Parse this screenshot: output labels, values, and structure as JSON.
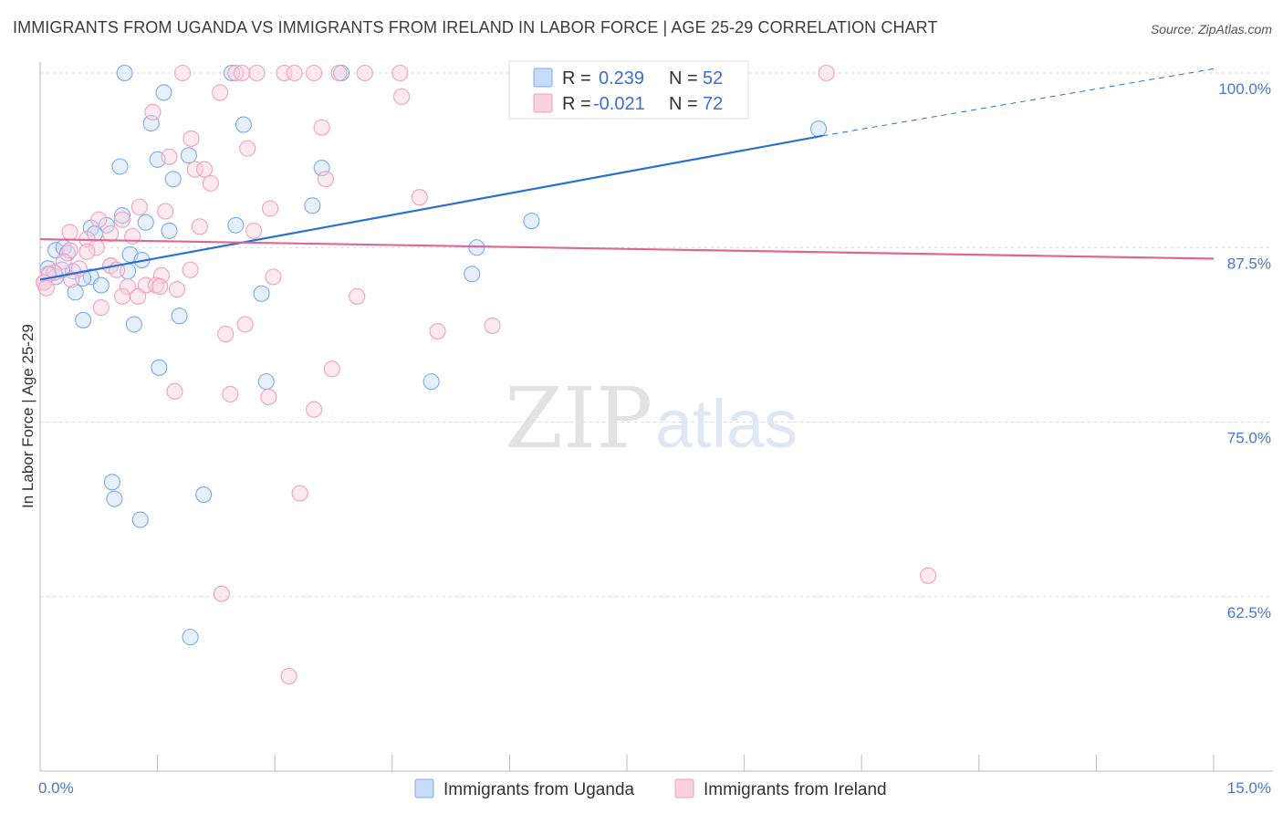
{
  "header": {
    "title": "IMMIGRANTS FROM UGANDA VS IMMIGRANTS FROM IRELAND IN LABOR FORCE | AGE 25-29 CORRELATION CHART",
    "source": "Source: ZipAtlas.com"
  },
  "watermark": {
    "zip": "ZIP",
    "atlas": "atlas"
  },
  "chart_data": {
    "type": "scatter",
    "ylabel": "In Labor Force | Age 25-29",
    "xlim": [
      0.0,
      15.0
    ],
    "ylim": [
      50.0,
      100.0
    ],
    "x_tick_labels": [
      "0.0%",
      "15.0%"
    ],
    "y_ticks": [
      62.5,
      75.0,
      87.5,
      100.0
    ],
    "y_tick_labels": [
      "62.5%",
      "75.0%",
      "87.5%",
      "100.0%"
    ],
    "grid": "horizontal dashed",
    "legend_stats": [
      {
        "r_label": "R =",
        "r": "0.239",
        "n_label": "N =",
        "n": "52",
        "color": "#7aaaf0"
      },
      {
        "r_label": "R =",
        "r": "-0.021",
        "n_label": "N =",
        "n": "72",
        "color": "#f2a0bc"
      }
    ],
    "series": [
      {
        "name": "Immigrants from Uganda",
        "color": "#7aaaf0",
        "line_color": "#2b6fd0",
        "trend": {
          "x0": 0.0,
          "y0": 85.2,
          "x1": 10.0,
          "y1": 95.5,
          "x_ext": 15.0,
          "y_ext": 100.3
        },
        "points": [
          [
            1.08,
            100.0
          ],
          [
            2.45,
            100.0
          ],
          [
            3.85,
            100.0
          ],
          [
            1.58,
            98.6
          ],
          [
            1.42,
            96.4
          ],
          [
            2.6,
            96.3
          ],
          [
            1.5,
            93.8
          ],
          [
            1.9,
            94.1
          ],
          [
            1.02,
            93.3
          ],
          [
            3.6,
            93.2
          ],
          [
            1.7,
            92.4
          ],
          [
            3.48,
            90.5
          ],
          [
            1.05,
            89.8
          ],
          [
            0.85,
            89.1
          ],
          [
            1.35,
            89.3
          ],
          [
            0.65,
            88.9
          ],
          [
            2.5,
            89.1
          ],
          [
            1.65,
            88.7
          ],
          [
            0.7,
            88.5
          ],
          [
            0.2,
            87.3
          ],
          [
            0.3,
            87.5
          ],
          [
            0.35,
            87.1
          ],
          [
            1.15,
            87.0
          ],
          [
            1.3,
            86.6
          ],
          [
            0.1,
            86.0
          ],
          [
            0.42,
            85.8
          ],
          [
            0.12,
            85.6
          ],
          [
            0.2,
            85.4
          ],
          [
            0.65,
            85.4
          ],
          [
            0.55,
            85.3
          ],
          [
            1.12,
            85.8
          ],
          [
            0.9,
            86.2
          ],
          [
            0.28,
            85.9
          ],
          [
            0.45,
            84.3
          ],
          [
            0.78,
            84.8
          ],
          [
            2.83,
            84.2
          ],
          [
            0.55,
            82.3
          ],
          [
            1.2,
            82.0
          ],
          [
            1.78,
            82.6
          ],
          [
            1.52,
            78.9
          ],
          [
            2.89,
            77.9
          ],
          [
            5.0,
            77.9
          ],
          [
            0.92,
            70.7
          ],
          [
            0.95,
            69.5
          ],
          [
            2.09,
            69.8
          ],
          [
            1.28,
            68.0
          ],
          [
            1.92,
            59.6
          ],
          [
            6.28,
            89.4
          ],
          [
            5.58,
            87.5
          ],
          [
            5.52,
            85.6
          ],
          [
            9.95,
            96.0
          ],
          [
            0.05,
            85.0
          ]
        ]
      },
      {
        "name": "Immigrants from Ireland",
        "color": "#f2a0bc",
        "line_color": "#e06890",
        "trend": {
          "x0": 0.0,
          "y0": 88.1,
          "x1": 15.0,
          "y1": 86.7
        },
        "points": [
          [
            1.82,
            100.0
          ],
          [
            2.5,
            100.0
          ],
          [
            2.58,
            100.0
          ],
          [
            2.77,
            100.0
          ],
          [
            3.12,
            100.0
          ],
          [
            3.25,
            100.0
          ],
          [
            3.5,
            100.0
          ],
          [
            3.82,
            100.0
          ],
          [
            4.15,
            100.0
          ],
          [
            4.6,
            100.0
          ],
          [
            10.05,
            100.0
          ],
          [
            2.3,
            98.6
          ],
          [
            4.62,
            98.3
          ],
          [
            1.44,
            97.2
          ],
          [
            3.6,
            96.1
          ],
          [
            1.93,
            95.3
          ],
          [
            2.65,
            94.6
          ],
          [
            1.65,
            94.0
          ],
          [
            1.98,
            93.1
          ],
          [
            2.1,
            93.1
          ],
          [
            2.18,
            92.1
          ],
          [
            3.65,
            92.4
          ],
          [
            4.85,
            91.1
          ],
          [
            1.27,
            90.4
          ],
          [
            1.6,
            90.1
          ],
          [
            2.94,
            90.3
          ],
          [
            1.05,
            89.5
          ],
          [
            0.75,
            89.5
          ],
          [
            2.04,
            89.0
          ],
          [
            2.73,
            88.7
          ],
          [
            0.38,
            88.6
          ],
          [
            0.6,
            88.1
          ],
          [
            0.9,
            88.5
          ],
          [
            1.18,
            88.3
          ],
          [
            0.72,
            87.5
          ],
          [
            0.38,
            87.3
          ],
          [
            0.6,
            87.2
          ],
          [
            0.3,
            86.5
          ],
          [
            0.5,
            86.0
          ],
          [
            0.9,
            86.2
          ],
          [
            0.98,
            85.9
          ],
          [
            0.18,
            85.7
          ],
          [
            0.1,
            85.6
          ],
          [
            0.4,
            85.2
          ],
          [
            1.55,
            85.5
          ],
          [
            1.92,
            85.9
          ],
          [
            2.98,
            85.4
          ],
          [
            1.12,
            84.7
          ],
          [
            1.35,
            84.8
          ],
          [
            1.48,
            84.8
          ],
          [
            1.53,
            84.7
          ],
          [
            1.75,
            84.5
          ],
          [
            1.05,
            84.0
          ],
          [
            1.25,
            84.0
          ],
          [
            4.05,
            84.0
          ],
          [
            0.78,
            83.2
          ],
          [
            2.62,
            82.0
          ],
          [
            2.37,
            81.3
          ],
          [
            5.08,
            81.5
          ],
          [
            5.78,
            81.9
          ],
          [
            3.73,
            78.8
          ],
          [
            1.72,
            77.2
          ],
          [
            2.43,
            77.0
          ],
          [
            2.92,
            76.8
          ],
          [
            3.5,
            75.9
          ],
          [
            3.32,
            69.9
          ],
          [
            2.32,
            62.7
          ],
          [
            3.18,
            56.8
          ],
          [
            11.35,
            64.0
          ],
          [
            0.05,
            85.0
          ],
          [
            0.05,
            85.0
          ],
          [
            0.08,
            84.6
          ]
        ]
      }
    ]
  }
}
